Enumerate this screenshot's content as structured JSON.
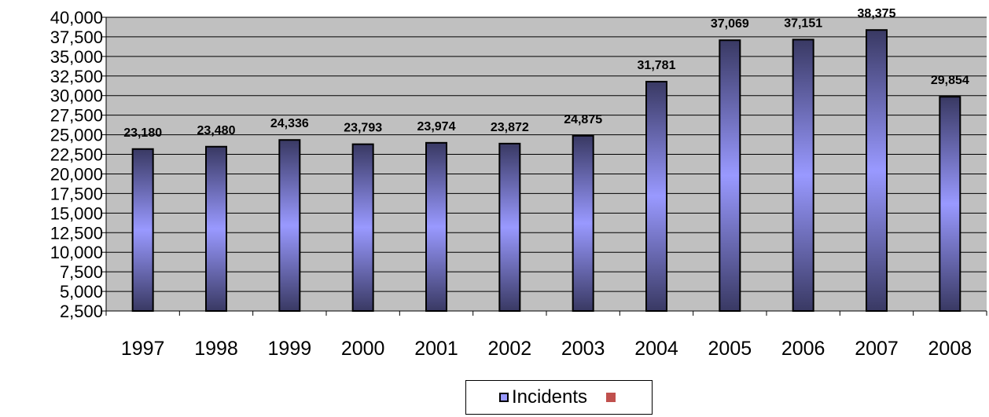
{
  "chart_data": {
    "type": "bar",
    "title": "",
    "xlabel": "",
    "ylabel": "",
    "categories": [
      "1997",
      "1998",
      "1999",
      "2000",
      "2001",
      "2002",
      "2003",
      "2004",
      "2005",
      "2006",
      "2007",
      "2008"
    ],
    "series": [
      {
        "name": "Incidents",
        "values": [
          23180,
          23480,
          24336,
          23793,
          23974,
          23872,
          24875,
          31781,
          37069,
          37151,
          38375,
          29854
        ],
        "value_labels": [
          "23,180",
          "23,480",
          "24,336",
          "23,793",
          "23,974",
          "23,872",
          "24,875",
          "31,781",
          "37,069",
          "37,151",
          "38,375",
          "29,854"
        ]
      }
    ],
    "ylim": [
      2500,
      40000
    ],
    "yticks": [
      "2,500",
      "5,000",
      "7,500",
      "10,000",
      "12,500",
      "15,000",
      "17,500",
      "20,000",
      "22,500",
      "25,000",
      "27,500",
      "30,000",
      "32,500",
      "35,000",
      "37,500",
      "40,000"
    ],
    "grid": true,
    "legend_position": "bottom",
    "colors": {
      "plot_background": "#c0c0c0",
      "bar_edge": "#393963",
      "bar_center": "#9999ff",
      "gridline": "#000000",
      "legend_second_swatch": "#c0504d"
    }
  },
  "legend": {
    "items": [
      {
        "label": "Incidents"
      },
      {
        "label": ""
      }
    ]
  }
}
